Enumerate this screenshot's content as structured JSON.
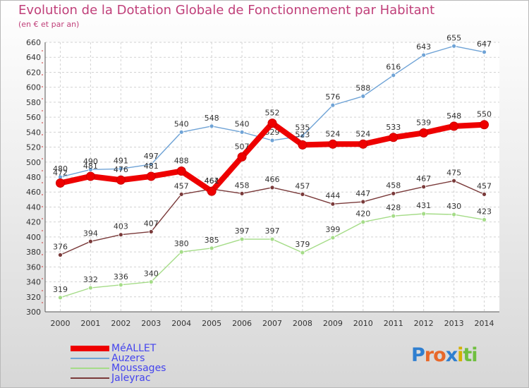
{
  "chart_data": {
    "type": "line",
    "title": "Evolution de la Dotation Globale de Fonctionnement par Habitant",
    "subtitle": "(en € et par an)",
    "categories": [
      "2000",
      "2001",
      "2002",
      "2003",
      "2004",
      "2005",
      "2006",
      "2007",
      "2008",
      "2009",
      "2010",
      "2011",
      "2012",
      "2013",
      "2014"
    ],
    "ylim": [
      300,
      660
    ],
    "yticks": [
      300,
      320,
      340,
      360,
      380,
      400,
      420,
      440,
      460,
      480,
      500,
      520,
      540,
      560,
      580,
      600,
      620,
      640,
      660
    ],
    "grid": true,
    "legend_position": "bottom-left",
    "series": [
      {
        "name": "MéALLET",
        "color": "#ee0000",
        "values": [
          472,
          481,
          476,
          481,
          488,
          461,
          507,
          552,
          523,
          524,
          524,
          533,
          539,
          548,
          550
        ]
      },
      {
        "name": "Auzers",
        "color": "#6fa3d6",
        "values": [
          480,
          490,
          491,
          497,
          540,
          548,
          540,
          529,
          535,
          576,
          588,
          616,
          643,
          655,
          647
        ]
      },
      {
        "name": "Moussages",
        "color": "#a5dc88",
        "values": [
          319,
          332,
          336,
          340,
          380,
          385,
          397,
          397,
          379,
          399,
          420,
          428,
          431,
          430,
          423
        ]
      },
      {
        "name": "Jaleyrac",
        "color": "#7a3a3a",
        "values": [
          376,
          394,
          403,
          407,
          457,
          464,
          458,
          466,
          457,
          444,
          447,
          458,
          467,
          475,
          457
        ]
      }
    ]
  },
  "logo": {
    "letters": [
      "P",
      "r",
      "o",
      "x",
      "i",
      "t",
      "i"
    ],
    "colors": [
      "#2f7fd0",
      "#e8682a",
      "#e8682a",
      "#2f7fd0",
      "#d4b000",
      "#6fbf3f",
      "#6fbf3f"
    ]
  }
}
